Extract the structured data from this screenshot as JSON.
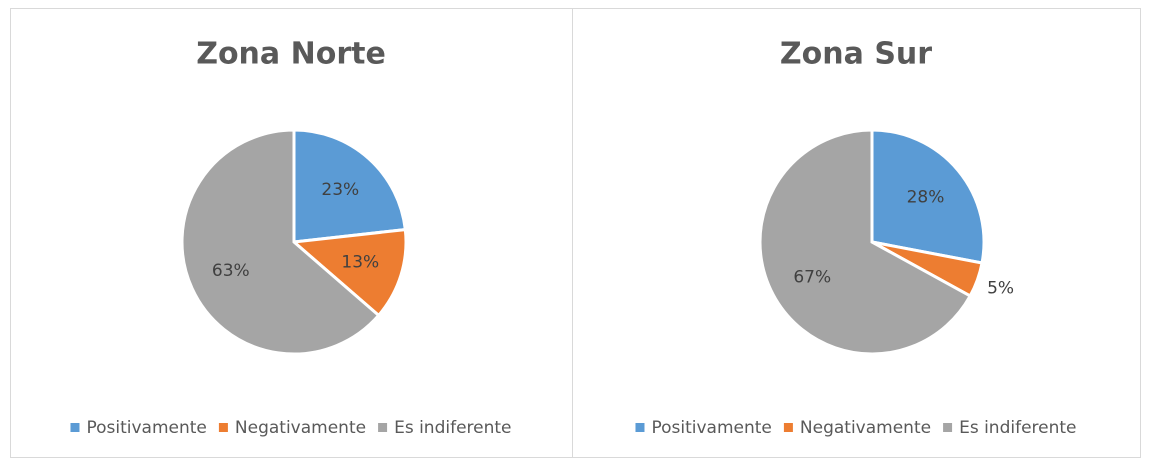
{
  "chart_data": [
    {
      "type": "pie",
      "title": "Zona Norte",
      "categories": [
        "Positivamente",
        "Negativamente",
        "Es indiferente"
      ],
      "values": [
        23,
        13,
        63
      ],
      "value_labels": [
        "23%",
        "13%",
        "63%"
      ],
      "colors": [
        "#5b9bd5",
        "#ed7d31",
        "#a5a5a5"
      ],
      "legend": "bottom"
    },
    {
      "type": "pie",
      "title": "Zona Sur",
      "categories": [
        "Positivamente",
        "Negativamente",
        "Es indiferente"
      ],
      "values": [
        28,
        5,
        67
      ],
      "value_labels": [
        "28%",
        "5%",
        "67%"
      ],
      "colors": [
        "#5b9bd5",
        "#ed7d31",
        "#a5a5a5"
      ],
      "legend": "bottom"
    }
  ]
}
